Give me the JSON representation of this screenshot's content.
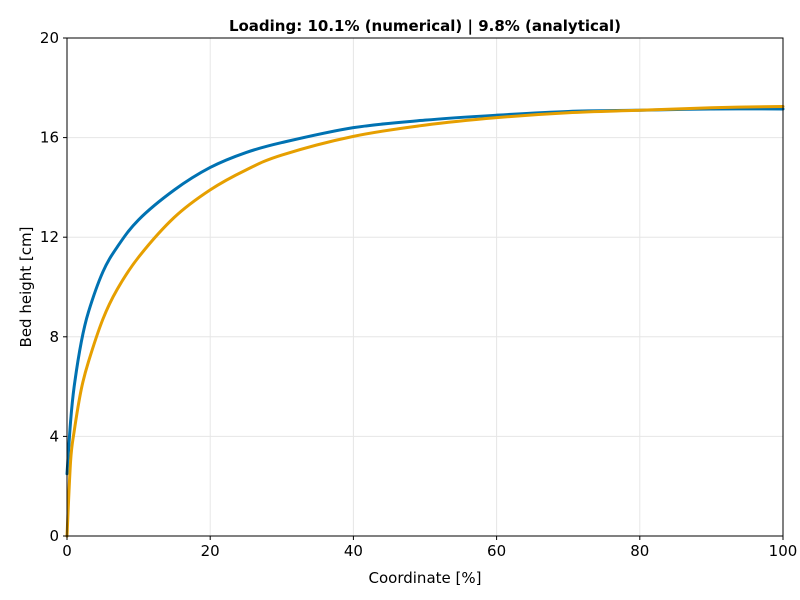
{
  "chart_data": {
    "type": "line",
    "title": "Loading: 10.1% (numerical) | 9.8% (analytical)",
    "xlabel": "Coordinate [%]",
    "ylabel": "Bed height [cm]",
    "xlim": [
      0,
      100
    ],
    "ylim": [
      0,
      20
    ],
    "xticks": [
      "0",
      "20",
      "40",
      "60",
      "80",
      "100"
    ],
    "yticks": [
      "0",
      "4",
      "8",
      "12",
      "16",
      "20"
    ],
    "grid": true,
    "legend": "none",
    "series": [
      {
        "color": "#0072b2",
        "x": [
          0,
          0.5,
          1,
          2,
          3,
          5,
          7,
          10,
          15,
          20,
          25,
          30,
          40,
          50,
          60,
          70,
          80,
          90,
          100
        ],
        "y": [
          2.5,
          4.6,
          6.0,
          7.8,
          9.0,
          10.6,
          11.6,
          12.7,
          13.9,
          14.8,
          15.4,
          15.8,
          16.4,
          16.7,
          16.9,
          17.05,
          17.1,
          17.15,
          17.15
        ]
      },
      {
        "color": "#e69f00",
        "x": [
          0,
          0.5,
          1,
          2,
          3,
          5,
          7,
          10,
          15,
          20,
          25,
          30,
          40,
          50,
          60,
          70,
          80,
          90,
          100
        ],
        "y": [
          0.0,
          3.0,
          4.2,
          5.9,
          7.0,
          8.7,
          9.9,
          11.2,
          12.8,
          13.9,
          14.7,
          15.3,
          16.05,
          16.5,
          16.8,
          17.0,
          17.1,
          17.2,
          17.25
        ]
      }
    ]
  }
}
